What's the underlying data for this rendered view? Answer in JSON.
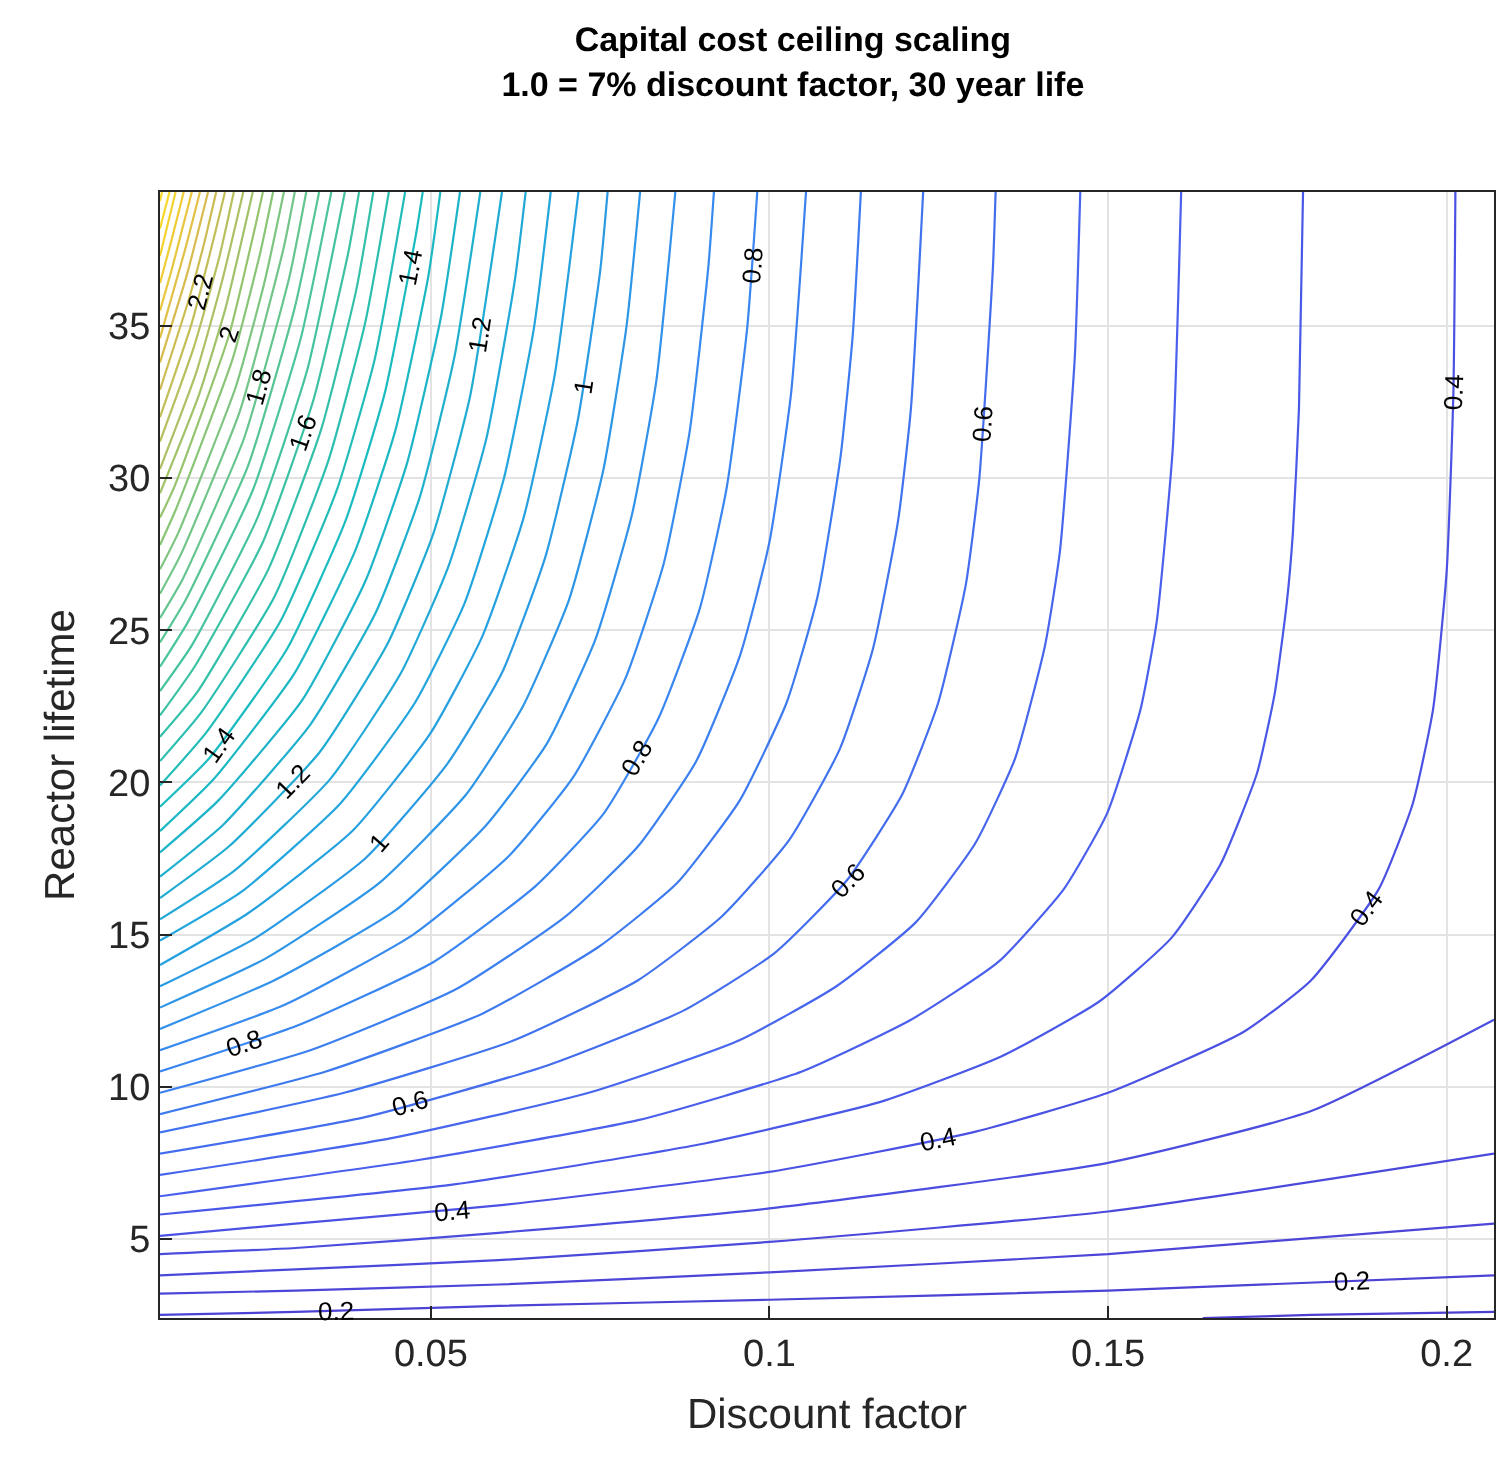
{
  "chart_data": {
    "type": "line",
    "title": "Capital cost ceiling scaling",
    "subtitle": "1.0 = 7% discount factor, 30 year life",
    "xlabel": "Discount factor",
    "ylabel": "Reactor lifetime",
    "xlim": [
      0.01,
      0.207
    ],
    "ylim": [
      2.4,
      39.4
    ],
    "xticks": [
      0.05,
      0.1,
      0.15,
      0.2
    ],
    "yticks": [
      5,
      10,
      15,
      20,
      25,
      30,
      35
    ],
    "grid": true,
    "marker": "none",
    "line_style": "solid",
    "series": [
      {
        "color": "#4c3fcf",
        "x": [
          0.164,
          0.18,
          0.207
        ],
        "values": [
          2.4,
          2.5,
          2.6
        ]
      },
      {
        "color": "#4c42d3",
        "x": [
          0.01,
          0.03,
          0.06,
          0.1,
          0.15,
          0.207
        ],
        "values": [
          2.5,
          2.6,
          2.8,
          3.0,
          3.3,
          3.8
        ]
      },
      {
        "color": "#4c45d7",
        "x": [
          0.01,
          0.03,
          0.06,
          0.1,
          0.15,
          0.207
        ],
        "values": [
          3.2,
          3.3,
          3.5,
          3.9,
          4.5,
          5.5
        ]
      },
      {
        "color": "#4b49db",
        "x": [
          0.01,
          0.03,
          0.06,
          0.1,
          0.15,
          0.207
        ],
        "values": [
          3.8,
          4.0,
          4.3,
          4.9,
          5.9,
          7.8
        ]
      },
      {
        "color": "#4b4ddf",
        "x": [
          0.01,
          0.03,
          0.06,
          0.1,
          0.15,
          0.18,
          0.207
        ],
        "values": [
          4.5,
          4.7,
          5.2,
          6.0,
          7.5,
          9.2,
          12.2
        ]
      },
      {
        "color": "#4b52e3",
        "x": [
          0.01,
          0.03,
          0.06,
          0.1,
          0.13,
          0.15,
          0.17,
          0.18,
          0.19,
          0.195,
          0.198,
          0.2,
          0.201,
          0.2013
        ],
        "values": [
          5.1,
          5.5,
          6.1,
          7.2,
          8.5,
          9.8,
          11.8,
          13.5,
          16.5,
          19.3,
          22.4,
          26.9,
          32.8,
          39.4
        ]
      },
      {
        "color": "#4a58e8",
        "x": [
          0.01,
          0.0537,
          0.0896,
          0.1164,
          0.1343,
          0.1487,
          0.1594,
          0.1666,
          0.172,
          0.1746,
          0.1764,
          0.1773,
          0.1782,
          0.1788
        ],
        "values": [
          5.8,
          6.8,
          8.1,
          9.5,
          11.0,
          12.8,
          14.9,
          17.3,
          20.3,
          22.9,
          25.9,
          28.2,
          32.3,
          39.4
        ]
      },
      {
        "color": "#4a60ec",
        "x": [
          0.01,
          0.0484,
          0.0806,
          0.1048,
          0.1209,
          0.1338,
          0.1435,
          0.1499,
          0.1548,
          0.1572,
          0.1596,
          0.1608
        ],
        "values": [
          6.4,
          7.6,
          8.9,
          10.5,
          12.2,
          14.1,
          16.5,
          19.0,
          22.4,
          25.3,
          31.1,
          39.4
        ]
      },
      {
        "color": "#4766ed",
        "x": [
          0.01,
          0.044,
          0.0733,
          0.0953,
          0.1099,
          0.1216,
          0.1304,
          0.1363,
          0.1407,
          0.1429,
          0.1451,
          0.1459
        ],
        "values": [
          7.1,
          8.3,
          9.8,
          11.5,
          13.3,
          15.4,
          18.0,
          20.8,
          24.5,
          27.6,
          34.0,
          39.4
        ]
      },
      {
        "color": "#446dee",
        "x": [
          0.01,
          0.0403,
          0.0672,
          0.0873,
          0.1008,
          0.1115,
          0.1196,
          0.1249,
          0.129,
          0.131,
          0.133,
          0.1334
        ],
        "values": [
          7.8,
          9.0,
          10.7,
          12.5,
          14.4,
          16.8,
          19.6,
          22.6,
          26.5,
          30.0,
          36.9,
          39.4
        ]
      },
      {
        "color": "#4173ef",
        "x": [
          0.01,
          0.0372,
          0.062,
          0.0806,
          0.093,
          0.1029,
          0.1104,
          0.1153,
          0.119,
          0.1209,
          0.1227
        ],
        "values": [
          8.5,
          9.8,
          11.5,
          13.5,
          15.6,
          18.1,
          21.1,
          24.4,
          28.6,
          32.3,
          39.4
        ]
      },
      {
        "color": "#3e7aef",
        "x": [
          0.01,
          0.0345,
          0.0576,
          0.0748,
          0.0864,
          0.0956,
          0.1025,
          0.1071,
          0.1105,
          0.1123,
          0.1135
        ],
        "values": [
          9.1,
          10.5,
          12.4,
          14.6,
          16.7,
          19.4,
          22.6,
          26.1,
          30.7,
          34.7,
          39.4
        ]
      },
      {
        "color": "#3c80f0",
        "x": [
          0.01,
          0.0322,
          0.0537,
          0.0699,
          0.0806,
          0.0892,
          0.0957,
          0.1,
          0.1032,
          0.1054
        ],
        "values": [
          9.8,
          11.2,
          13.2,
          15.6,
          17.9,
          20.7,
          24.2,
          27.9,
          32.8,
          39.4
        ]
      },
      {
        "color": "#3a86f0",
        "x": [
          0.01,
          0.0302,
          0.0504,
          0.0655,
          0.0756,
          0.0836,
          0.0897,
          0.0937,
          0.0967,
          0.0982
        ],
        "values": [
          10.5,
          12.0,
          14.1,
          16.6,
          19.0,
          22.1,
          25.7,
          29.7,
          34.9,
          39.4
        ]
      },
      {
        "color": "#378bee",
        "x": [
          0.01,
          0.0285,
          0.0474,
          0.0616,
          0.0711,
          0.0787,
          0.0844,
          0.0882,
          0.091,
          0.0918
        ],
        "values": [
          11.2,
          12.7,
          15.0,
          17.6,
          20.2,
          23.4,
          27.2,
          31.5,
          37.0,
          39.4
        ]
      },
      {
        "color": "#3291ea",
        "x": [
          0.01,
          0.0269,
          0.0448,
          0.0582,
          0.0672,
          0.0743,
          0.0797,
          0.0833,
          0.0861
        ],
        "values": [
          11.9,
          13.5,
          15.8,
          18.6,
          21.3,
          24.7,
          28.8,
          33.2,
          39.4
        ]
      },
      {
        "color": "#2e96e6",
        "x": [
          0.01,
          0.0255,
          0.0424,
          0.0552,
          0.0636,
          0.0704,
          0.0755,
          0.0789,
          0.0809
        ],
        "values": [
          12.6,
          14.2,
          16.7,
          19.6,
          22.5,
          26.0,
          30.3,
          35.0,
          39.4
        ]
      },
      {
        "color": "#2a9be3",
        "x": [
          0.01,
          0.0242,
          0.0403,
          0.0524,
          0.0605,
          0.0669,
          0.0717,
          0.075,
          0.0761
        ],
        "values": [
          13.3,
          14.9,
          17.5,
          20.6,
          23.6,
          27.4,
          31.9,
          36.8,
          39.4
        ]
      },
      {
        "color": "#26a1e0",
        "x": [
          0.01,
          0.023,
          0.0384,
          0.0499,
          0.0576,
          0.0637,
          0.0683,
          0.0718
        ],
        "values": [
          14.0,
          15.7,
          18.4,
          21.6,
          24.8,
          28.7,
          33.4,
          39.4
        ]
      },
      {
        "color": "#23a6dd",
        "x": [
          0.01,
          0.022,
          0.0366,
          0.0476,
          0.055,
          0.0608,
          0.0652,
          0.0677
        ],
        "values": [
          14.8,
          16.4,
          19.3,
          22.6,
          25.9,
          30.0,
          34.9,
          39.4
        ]
      },
      {
        "color": "#22a9d8",
        "x": [
          0.01,
          0.021,
          0.0351,
          0.0456,
          0.0526,
          0.0582,
          0.0624,
          0.064
        ],
        "values": [
          15.5,
          17.1,
          20.1,
          23.6,
          27.1,
          31.3,
          36.5,
          39.4
        ]
      },
      {
        "color": "#20acd2",
        "x": [
          0.01,
          0.0202,
          0.0336,
          0.0437,
          0.0504,
          0.0558,
          0.0605
        ],
        "values": [
          16.2,
          17.9,
          21.0,
          24.6,
          28.2,
          32.7,
          39.4
        ]
      },
      {
        "color": "#1fb0cd",
        "x": [
          0.01,
          0.0193,
          0.0322,
          0.0419,
          0.0484,
          0.0535,
          0.0573
        ],
        "values": [
          16.9,
          18.6,
          21.9,
          25.6,
          29.4,
          34.0,
          39.4
        ]
      },
      {
        "color": "#1db4c8",
        "x": [
          0.01,
          0.0186,
          0.031,
          0.0403,
          0.0465,
          0.0515,
          0.0543
        ],
        "values": [
          17.7,
          19.4,
          22.7,
          26.6,
          30.5,
          35.3,
          39.4
        ]
      },
      {
        "color": "#1cb8c4",
        "x": [
          0.01,
          0.0179,
          0.0299,
          0.0388,
          0.0448,
          0.0496,
          0.0514
        ],
        "values": [
          18.4,
          20.1,
          23.6,
          27.6,
          31.6,
          36.6,
          39.4
        ]
      },
      {
        "color": "#1bbcc0",
        "x": [
          0.01,
          0.0173,
          0.0288,
          0.0374,
          0.0432,
          0.0478,
          0.0488
        ],
        "values": [
          19.2,
          20.8,
          24.4,
          28.6,
          32.8,
          38.0,
          39.4
        ]
      },
      {
        "color": "#23bdb9",
        "x": [
          0.01,
          0.0167,
          0.0278,
          0.0361,
          0.0417,
          0.0462
        ],
        "values": [
          19.9,
          21.6,
          25.3,
          29.6,
          33.9,
          39.4
        ]
      },
      {
        "color": "#2cbfb0",
        "x": [
          0.01,
          0.0161,
          0.0269,
          0.0349,
          0.0403,
          0.0438
        ],
        "values": [
          20.7,
          22.3,
          26.1,
          30.6,
          35.1,
          39.4
        ]
      },
      {
        "color": "#34c0a9",
        "x": [
          0.01,
          0.0156,
          0.026,
          0.0338,
          0.039,
          0.0415
        ],
        "values": [
          21.5,
          23.0,
          27.0,
          31.6,
          36.2,
          39.4
        ]
      },
      {
        "color": "#3cc2a2",
        "x": [
          0.01,
          0.0151,
          0.0252,
          0.0327,
          0.0378,
          0.0394
        ],
        "values": [
          22.2,
          23.8,
          27.9,
          32.6,
          37.4,
          39.4
        ]
      },
      {
        "color": "#44c39e",
        "x": [
          0.01,
          0.0147,
          0.0244,
          0.0318,
          0.0373
        ],
        "values": [
          23.0,
          24.5,
          28.7,
          33.6,
          39.4
        ]
      },
      {
        "color": "#4cc59a",
        "x": [
          0.01,
          0.0142,
          0.0237,
          0.0308,
          0.0353
        ],
        "values": [
          23.8,
          25.3,
          29.6,
          34.6,
          39.4
        ]
      },
      {
        "color": "#58c595",
        "x": [
          0.01,
          0.0138,
          0.023,
          0.0299,
          0.0335
        ],
        "values": [
          24.6,
          26.0,
          30.4,
          35.6,
          39.4
        ]
      },
      {
        "color": "#65c58e",
        "x": [
          0.01,
          0.0134,
          0.0224,
          0.0291,
          0.0316
        ],
        "values": [
          25.4,
          26.7,
          31.3,
          36.6,
          39.4
        ]
      },
      {
        "color": "#72c588",
        "x": [
          0.01,
          0.0131,
          0.0218,
          0.0283,
          0.0299
        ],
        "values": [
          26.2,
          27.5,
          32.2,
          37.6,
          39.4
        ]
      },
      {
        "color": "#7dc580",
        "x": [
          0.01,
          0.0127,
          0.0212,
          0.0255,
          0.0283
        ],
        "values": [
          27.0,
          28.2,
          33.0,
          36.5,
          39.4
        ]
      },
      {
        "color": "#89c577",
        "x": [
          0.01,
          0.0124,
          0.0207,
          0.0248,
          0.0267
        ],
        "values": [
          27.8,
          29.0,
          33.9,
          37.4,
          39.4
        ]
      },
      {
        "color": "#96c46e",
        "x": [
          0.01,
          0.0121,
          0.0202,
          0.0242,
          0.0252
        ],
        "values": [
          28.7,
          29.7,
          34.7,
          38.4,
          39.4
        ]
      },
      {
        "color": "#a1c269",
        "x": [
          0.01,
          0.0157,
          0.0197,
          0.0237
        ],
        "values": [
          29.5,
          32.7,
          35.6,
          39.4
        ]
      },
      {
        "color": "#adc064",
        "x": [
          0.01,
          0.0154,
          0.0192,
          0.0223
        ],
        "values": [
          30.3,
          33.5,
          36.5,
          39.4
        ]
      },
      {
        "color": "#b8bf5e",
        "x": [
          0.01,
          0.015,
          0.0188,
          0.0209
        ],
        "values": [
          31.2,
          34.3,
          37.3,
          39.4
        ]
      },
      {
        "color": "#c2be58",
        "x": [
          0.01,
          0.0147,
          0.0183,
          0.0196
        ],
        "values": [
          32.0,
          35.1,
          38.2,
          39.4
        ]
      },
      {
        "color": "#cdbc53",
        "x": [
          0.01,
          0.0143,
          0.0165,
          0.0183
        ],
        "values": [
          32.9,
          35.9,
          37.7,
          39.4
        ]
      },
      {
        "color": "#d8bb4e",
        "x": [
          0.01,
          0.014,
          0.0171
        ],
        "values": [
          33.8,
          36.7,
          39.4
        ]
      },
      {
        "color": "#e0c045",
        "x": [
          0.01,
          0.0137,
          0.0159
        ],
        "values": [
          34.6,
          37.5,
          39.4
        ]
      },
      {
        "color": "#e8c63e",
        "x": [
          0.01,
          0.0118,
          0.0147
        ],
        "values": [
          35.5,
          36.9,
          39.4
        ]
      },
      {
        "color": "#efcc36",
        "x": [
          0.01,
          0.0118,
          0.0135
        ],
        "values": [
          36.4,
          37.9,
          39.4
        ]
      },
      {
        "color": "#f4d230",
        "x": [
          0.01,
          0.0123
        ],
        "values": [
          37.3,
          39.4
        ]
      },
      {
        "color": "#f7d72c",
        "x": [
          0.01,
          0.0114
        ],
        "values": [
          38.2,
          39.4
        ]
      },
      {
        "color": "#f9d92a",
        "x": [
          0.01,
          0.0103
        ],
        "values": [
          39.1,
          39.4
        ]
      }
    ],
    "annotations": [
      {
        "text": "0.2",
        "x": 0.036,
        "y": 2.62
      },
      {
        "text": "0.2",
        "x": 0.186,
        "y": 3.62
      },
      {
        "text": "0.4",
        "x": 0.053,
        "y": 5.92
      },
      {
        "text": "0.4",
        "x": 0.125,
        "y": 8.25
      },
      {
        "text": "0.4",
        "x": 0.188,
        "y": 15.85
      },
      {
        "text": "0.4",
        "x": 0.201,
        "y": 32.8
      },
      {
        "text": "0.6",
        "x": 0.047,
        "y": 9.45
      },
      {
        "text": "0.6",
        "x": 0.1115,
        "y": 16.76
      },
      {
        "text": "0.6",
        "x": 0.1315,
        "y": 31.8
      },
      {
        "text": "0.8",
        "x": 0.0225,
        "y": 11.42
      },
      {
        "text": "0.8",
        "x": 0.0802,
        "y": 20.8
      },
      {
        "text": "0.8",
        "x": 0.0975,
        "y": 37
      },
      {
        "text": "1",
        "x": 0.0423,
        "y": 18.0
      },
      {
        "text": "1",
        "x": 0.0725,
        "y": 33.0
      },
      {
        "text": "1.2",
        "x": 0.0296,
        "y": 20.06
      },
      {
        "text": "1.2",
        "x": 0.0572,
        "y": 34.7
      },
      {
        "text": "1.4",
        "x": 0.0186,
        "y": 21.25
      },
      {
        "text": "1.4",
        "x": 0.0468,
        "y": 36.9
      },
      {
        "text": "1.6",
        "x": 0.031,
        "y": 31.5
      },
      {
        "text": "1.8",
        "x": 0.0245,
        "y": 33.0
      },
      {
        "text": "2",
        "x": 0.0201,
        "y": 34.7
      },
      {
        "text": "2.2",
        "x": 0.0158,
        "y": 36.1
      }
    ]
  }
}
